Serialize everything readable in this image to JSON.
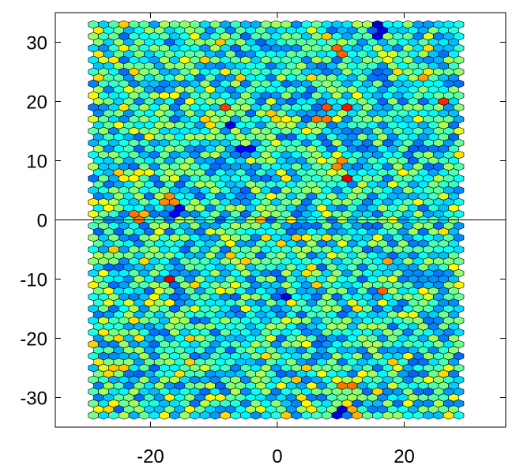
{
  "chart_data": {
    "type": "heatmap",
    "subtype": "hexagonal-binning",
    "title": "",
    "xlabel": "",
    "ylabel": "",
    "xlim": [
      -35,
      36
    ],
    "ylim": [
      -35,
      35
    ],
    "x_ticks": [
      -20,
      0,
      20
    ],
    "x_tick_labels": [
      "-20",
      "0",
      "20"
    ],
    "y_ticks": [
      -30,
      -20,
      -10,
      0,
      10,
      20,
      30
    ],
    "y_tick_labels": [
      "-30",
      "-20",
      "-10",
      "0",
      "10",
      "20",
      "30"
    ],
    "reference_line": {
      "y": 0
    },
    "grid": false,
    "colormap": "jet",
    "hex_grid": {
      "x_range": [
        -29,
        29
      ],
      "y_range": [
        -33,
        33
      ],
      "col_spacing": 1.6,
      "row_spacing": 1.0,
      "odd_row_offset": 0.8
    },
    "highlight_cells": [
      {
        "x": -7.5,
        "y": 19.0,
        "level": 0.82
      },
      {
        "x": 8.0,
        "y": 19.0,
        "level": 0.8
      },
      {
        "x": 11.0,
        "y": 19.0,
        "level": 0.86
      },
      {
        "x": 26.0,
        "y": 20.0,
        "level": 0.84
      },
      {
        "x": 10.5,
        "y": 7.0,
        "level": 0.9
      },
      {
        "x": 7.0,
        "y": 17.0,
        "level": 0.76
      },
      {
        "x": 10.0,
        "y": 28.5,
        "level": 0.78
      },
      {
        "x": 23.0,
        "y": 24.0,
        "level": 0.72
      },
      {
        "x": 10.0,
        "y": 9.5,
        "level": 0.74
      },
      {
        "x": -16.5,
        "y": -10.0,
        "level": 0.9
      },
      {
        "x": -22.5,
        "y": 0.5,
        "level": 0.76
      },
      {
        "x": -21.0,
        "y": 1.0,
        "level": 0.7
      },
      {
        "x": -17.0,
        "y": 3.5,
        "level": 0.74
      },
      {
        "x": -2.0,
        "y": 0.0,
        "level": 0.7
      },
      {
        "x": 17.0,
        "y": -12.0,
        "level": 0.78
      },
      {
        "x": 17.0,
        "y": -7.0,
        "level": 0.72
      },
      {
        "x": 11.0,
        "y": -28.0,
        "level": 0.76
      },
      {
        "x": 12.5,
        "y": -32.5,
        "level": 0.7
      },
      {
        "x": -25.0,
        "y": -25.0,
        "level": 0.68
      }
    ],
    "low_cells": [
      {
        "x": 15.5,
        "y": 33.5,
        "level": 0.08
      },
      {
        "x": 16.5,
        "y": 31.5,
        "level": 0.1
      },
      {
        "x": 29.0,
        "y": 12.0,
        "level": 0.1
      },
      {
        "x": -8.0,
        "y": 16.0,
        "level": 0.1
      },
      {
        "x": -5.0,
        "y": 12.0,
        "level": 0.12
      },
      {
        "x": 2.0,
        "y": -13.0,
        "level": 0.1
      },
      {
        "x": 10.0,
        "y": -32.5,
        "level": 0.1
      },
      {
        "x": -15.5,
        "y": 1.5,
        "level": 0.12
      }
    ]
  }
}
